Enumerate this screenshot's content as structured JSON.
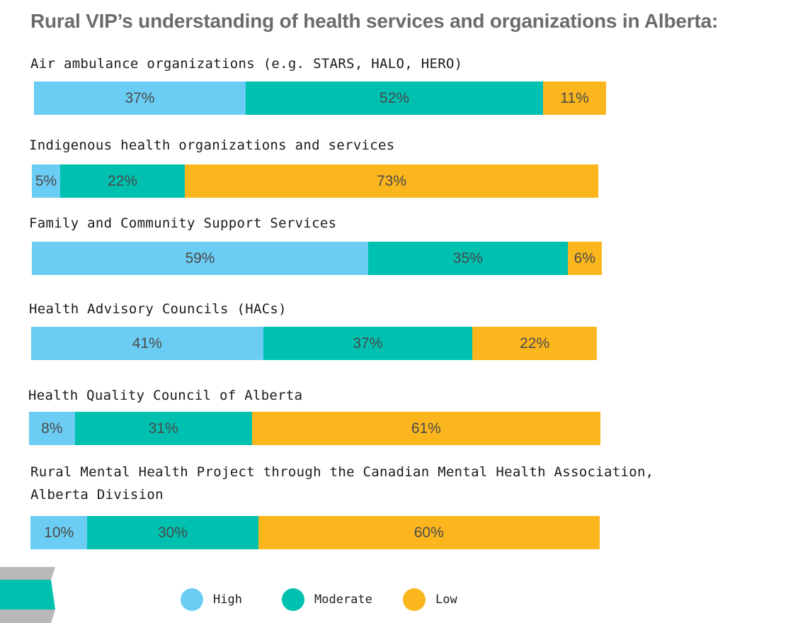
{
  "title": "Rural VIP’s understanding of health services and organizations in Alberta:",
  "colors": {
    "high": "#6bcdf4",
    "moderate": "#00c0b0",
    "low": "#fbb61e"
  },
  "legend": [
    {
      "key": "high",
      "label": "High",
      "color": "#6bcdf4"
    },
    {
      "key": "moderate",
      "label": "Moderate",
      "color": "#00c0b0"
    },
    {
      "key": "low",
      "label": "Low",
      "color": "#fbb61e"
    }
  ],
  "chart_data": {
    "type": "bar",
    "stacked": true,
    "orientation": "horizontal",
    "title": "Rural VIP’s understanding of health services and organizations in Alberta:",
    "categories": [
      "Air ambulance organizations (e.g. STARS, HALO, HERO)",
      "Indigenous health organizations and services",
      "Family and Community Support Services",
      "Health Advisory Councils (HACs)",
      "Health Quality Council of Alberta",
      "Rural Mental Health Project through the Canadian Mental Health Association, Alberta Division"
    ],
    "series": [
      {
        "name": "High",
        "values": [
          37,
          5,
          59,
          41,
          8,
          10
        ],
        "labels": [
          "37%",
          "5%",
          "59%",
          "41%",
          "8%",
          "10%"
        ]
      },
      {
        "name": "Moderate",
        "values": [
          52,
          22,
          35,
          37,
          31,
          30
        ],
        "labels": [
          "52%",
          "22%",
          "35%",
          "37%",
          "31%",
          "30%"
        ]
      },
      {
        "name": "Low",
        "values": [
          11,
          73,
          6,
          22,
          61,
          60
        ],
        "labels": [
          "11%",
          "73%",
          "6%",
          "22%",
          "61%",
          "60%"
        ]
      }
    ],
    "xlim": [
      0,
      100
    ],
    "legend_position": "bottom"
  }
}
